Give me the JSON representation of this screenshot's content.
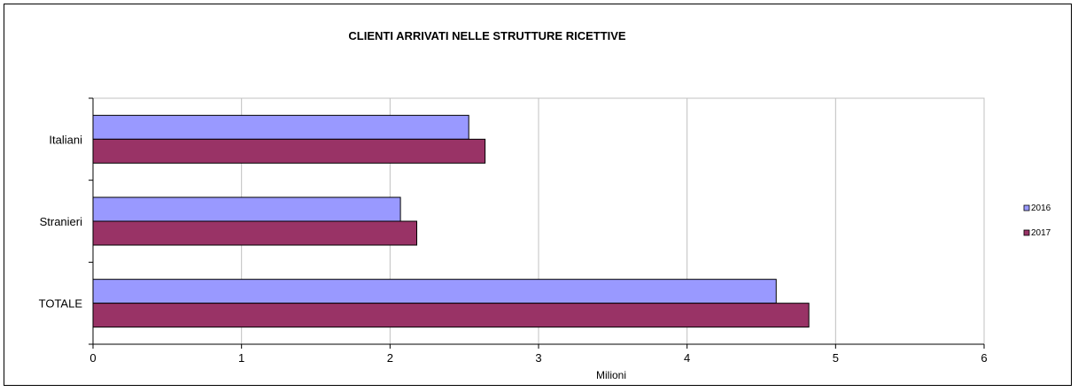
{
  "chart_data": {
    "type": "bar",
    "orientation": "horizontal",
    "title": "CLIENTI ARRIVATI NELLE STRUTTURE RICETTIVE",
    "xlabel": "Milioni",
    "ylabel": "",
    "categories": [
      "Italiani",
      "Stranieri",
      "TOTALE"
    ],
    "series": [
      {
        "name": "2016",
        "color": "#9999ff",
        "values": [
          2.53,
          2.07,
          4.6
        ]
      },
      {
        "name": "2017",
        "color": "#993366",
        "values": [
          2.64,
          2.18,
          4.82
        ]
      }
    ],
    "xlim": [
      0,
      6
    ],
    "xticks": [
      "0",
      "1",
      "2",
      "3",
      "4",
      "5",
      "6"
    ],
    "grid": true,
    "legend_position": "right"
  }
}
